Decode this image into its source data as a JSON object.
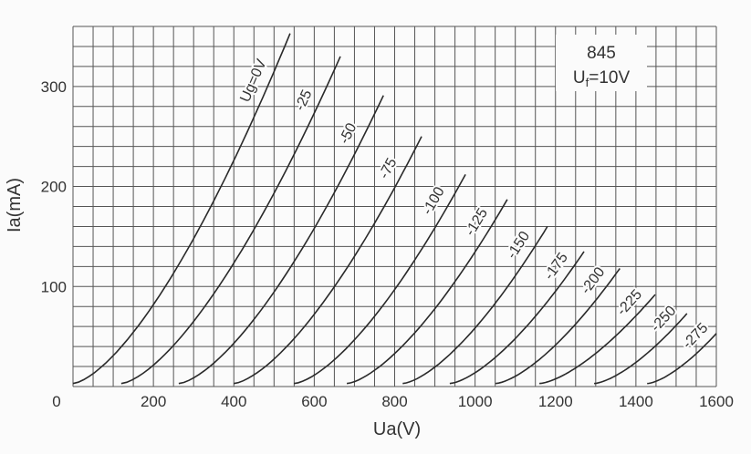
{
  "chart_data": {
    "type": "line",
    "xlabel": "Ua(V)",
    "ylabel": "Ia(mA)",
    "xlim": [
      0,
      1600
    ],
    "ylim": [
      0,
      360
    ],
    "x_ticks": [
      "0",
      "200",
      "400",
      "600",
      "800",
      "1000",
      "1200",
      "1400",
      "1600"
    ],
    "y_ticks": [
      "100",
      "200",
      "300"
    ],
    "grid": true,
    "annotation": {
      "tube": "845",
      "filament_main": "U",
      "filament_sub": "f",
      "filament_value": "=10V"
    },
    "series": [
      {
        "name": "Ug=0V",
        "points": [
          [
            0,
            3
          ],
          [
            540,
            353
          ]
        ]
      },
      {
        "name": "-25",
        "points": [
          [
            120,
            3
          ],
          [
            665,
            330
          ]
        ]
      },
      {
        "name": "-50",
        "points": [
          [
            263,
            3
          ],
          [
            772,
            291
          ]
        ]
      },
      {
        "name": "-75",
        "points": [
          [
            400,
            3
          ],
          [
            867,
            250
          ]
        ]
      },
      {
        "name": "-100",
        "points": [
          [
            550,
            3
          ],
          [
            976,
            212
          ]
        ]
      },
      {
        "name": "-125",
        "points": [
          [
            681,
            3
          ],
          [
            1080,
            187
          ]
        ]
      },
      {
        "name": "-150",
        "points": [
          [
            820,
            3
          ],
          [
            1180,
            160
          ]
        ]
      },
      {
        "name": "-175",
        "points": [
          [
            937,
            3
          ],
          [
            1271,
            135
          ]
        ]
      },
      {
        "name": "-200",
        "points": [
          [
            1051,
            3
          ],
          [
            1360,
            118
          ]
        ]
      },
      {
        "name": "-225",
        "points": [
          [
            1160,
            3
          ],
          [
            1448,
            92
          ]
        ]
      },
      {
        "name": "-250",
        "points": [
          [
            1296,
            3
          ],
          [
            1527,
            73
          ]
        ]
      },
      {
        "name": "-275",
        "points": [
          [
            1428,
            3
          ],
          [
            1600,
            53
          ]
        ]
      }
    ],
    "colors": {
      "grid": "#555555",
      "curve": "#2a2a2a",
      "text": "#333333"
    }
  }
}
